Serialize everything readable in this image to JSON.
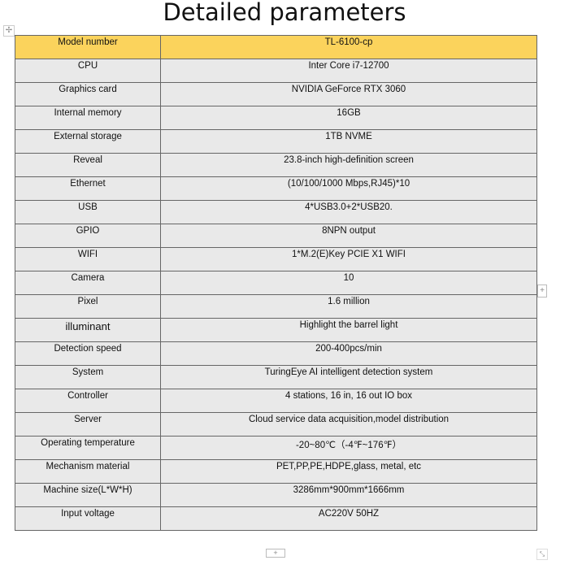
{
  "title": "Detailed parameters",
  "icons": {
    "move": "move-handle-icon",
    "add_column": "plus-icon",
    "add_row": "plus-icon",
    "resize": "resize-icon"
  },
  "colors": {
    "header_bg": "#fbd35c",
    "row_bg": "#e9e9e9"
  },
  "rows": [
    {
      "k": "Model number",
      "v": "TL-6100-cp"
    },
    {
      "k": "CPU",
      "v": "Inter Core i7-12700"
    },
    {
      "k": "Graphics card",
      "v": "NVIDIA GeForce RTX 3060"
    },
    {
      "k": "Internal memory",
      "v": "16GB"
    },
    {
      "k": "External storage",
      "v": "1TB NVME"
    },
    {
      "k": "Reveal",
      "v": "23.8-inch high-definition screen"
    },
    {
      "k": "Ethernet",
      "v": "(10/100/1000 Mbps,RJ45)*10"
    },
    {
      "k": "USB",
      "v": "4*USB3.0+2*USB20."
    },
    {
      "k": "GPIO",
      "v": "8NPN output"
    },
    {
      "k": "WIFI",
      "v": "1*M.2(E)Key PCIE X1 WIFI"
    },
    {
      "k": "Camera",
      "v": "10"
    },
    {
      "k": "Pixel",
      "v": "1.6 million"
    },
    {
      "k": "illuminant",
      "v": "Highlight the barrel light"
    },
    {
      "k": "Detection speed",
      "v": "200-400pcs/min"
    },
    {
      "k": "System",
      "v": "TuringEye AI intelligent detection system"
    },
    {
      "k": "Controller",
      "v": "4 stations, 16 in, 16 out IO box"
    },
    {
      "k": "Server",
      "v": "Cloud service data acquisition,model distribution"
    },
    {
      "k": "Operating temperature",
      "v": "-20~80℃（-4℉~176℉）"
    },
    {
      "k": "Mechanism material",
      "v": "PET,PP,PE,HDPE,glass, metal, etc"
    },
    {
      "k": "Machine size(L*W*H)",
      "v": "3286mm*900mm*1666mm"
    },
    {
      "k": "Input voltage",
      "v": "AC220V 50HZ"
    }
  ]
}
